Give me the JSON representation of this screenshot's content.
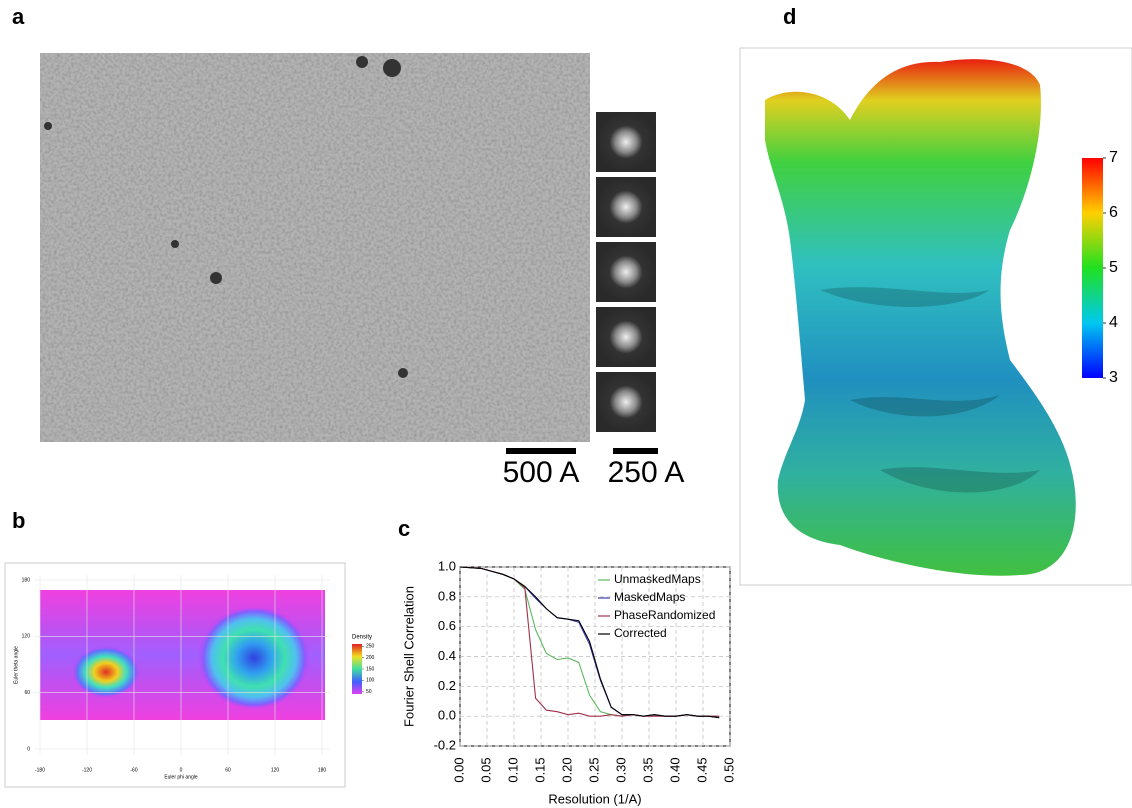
{
  "panel_labels": [
    "a",
    "b",
    "c",
    "d"
  ],
  "scale_bars": [
    "500 A",
    "250 A"
  ],
  "angular_distribution": {
    "x_label": "Euler phi angle",
    "y_label": "Euler theta angle",
    "xlim": [
      -180,
      180
    ],
    "xticks": [
      -180,
      -120,
      -60,
      0,
      60,
      120,
      180
    ],
    "ylim": [
      0,
      180
    ],
    "yticks": [
      0,
      60,
      120,
      180
    ],
    "legend_title": "Density",
    "legend_lim": [
      40,
      260
    ],
    "legend_ticks": [
      250,
      200,
      150,
      100,
      50
    ]
  },
  "chart_data": {
    "type": "line",
    "xlabel": "Resolution (1/A)",
    "ylabel": "Fourier Shell Correlation",
    "x": [
      0,
      0.02,
      0.04,
      0.06,
      0.08,
      0.1,
      0.12,
      0.14,
      0.16,
      0.18,
      0.2,
      0.22,
      0.24,
      0.26,
      0.28,
      0.3,
      0.32,
      0.34,
      0.36,
      0.38,
      0.4,
      0.42,
      0.44,
      0.46,
      0.48
    ],
    "series": [
      {
        "name": "UnmaskedMaps",
        "color": "#5cb85c",
        "values": [
          1.0,
          0.995,
          0.99,
          0.97,
          0.95,
          0.92,
          0.85,
          0.58,
          0.42,
          0.38,
          0.39,
          0.36,
          0.14,
          0.03,
          0.01,
          0.0,
          0.01,
          0.0,
          0.01,
          0.0,
          0.0,
          0.01,
          0.0,
          0.0,
          0.0
        ]
      },
      {
        "name": "MaskedMaps",
        "color": "#3a3ab4",
        "values": [
          1.0,
          0.995,
          0.99,
          0.97,
          0.95,
          0.92,
          0.87,
          0.79,
          0.72,
          0.66,
          0.65,
          0.63,
          0.48,
          0.24,
          0.06,
          0.01,
          0.01,
          0.0,
          0.01,
          0.0,
          0.0,
          0.01,
          0.0,
          0.0,
          -0.01
        ]
      },
      {
        "name": "PhaseRandomized",
        "color": "#a0304a",
        "values": [
          1.0,
          0.995,
          0.99,
          0.97,
          0.95,
          0.92,
          0.86,
          0.12,
          0.04,
          0.03,
          0.01,
          0.02,
          0.0,
          0.0,
          0.01,
          0.0,
          0.01,
          0.0,
          0.0,
          0.0,
          0.0,
          0.01,
          0.0,
          0.0,
          0.0
        ]
      },
      {
        "name": "Corrected",
        "color": "#000000",
        "values": [
          1.0,
          0.995,
          0.99,
          0.97,
          0.95,
          0.92,
          0.87,
          0.8,
          0.72,
          0.66,
          0.65,
          0.64,
          0.5,
          0.25,
          0.06,
          0.01,
          0.01,
          0.0,
          0.01,
          0.0,
          0.0,
          0.01,
          0.0,
          0.0,
          -0.01
        ]
      }
    ],
    "xlim": [
      0,
      0.5
    ],
    "xticks": [
      {
        "value": 0,
        "label": "0.00"
      },
      {
        "value": 0.05,
        "label": "0.05"
      },
      {
        "value": 0.1,
        "label": "0.10"
      },
      {
        "value": 0.15,
        "label": "0.15"
      },
      {
        "value": 0.2,
        "label": "0.20"
      },
      {
        "value": 0.25,
        "label": "0.25"
      },
      {
        "value": 0.3,
        "label": "0.30"
      },
      {
        "value": 0.35,
        "label": "0.35"
      },
      {
        "value": 0.4,
        "label": "0.40"
      },
      {
        "value": 0.45,
        "label": "0.45"
      },
      {
        "value": 0.5,
        "label": "0.50"
      }
    ],
    "ylim": [
      -0.2,
      1.0
    ],
    "yticks": [
      {
        "value": -0.2,
        "label": "-0.2"
      },
      {
        "value": 0,
        "label": "0.0"
      },
      {
        "value": 0.2,
        "label": "0.2"
      },
      {
        "value": 0.4,
        "label": "0.4"
      },
      {
        "value": 0.6,
        "label": "0.6"
      },
      {
        "value": 0.8,
        "label": "0.8"
      },
      {
        "value": 1.0,
        "label": "1.0"
      }
    ],
    "grid": true,
    "legend": "upper right"
  },
  "local_resolution": {
    "colorbar_lim": [
      3,
      7
    ],
    "colorbar_ticks": [
      7,
      6,
      5,
      4,
      3
    ]
  }
}
